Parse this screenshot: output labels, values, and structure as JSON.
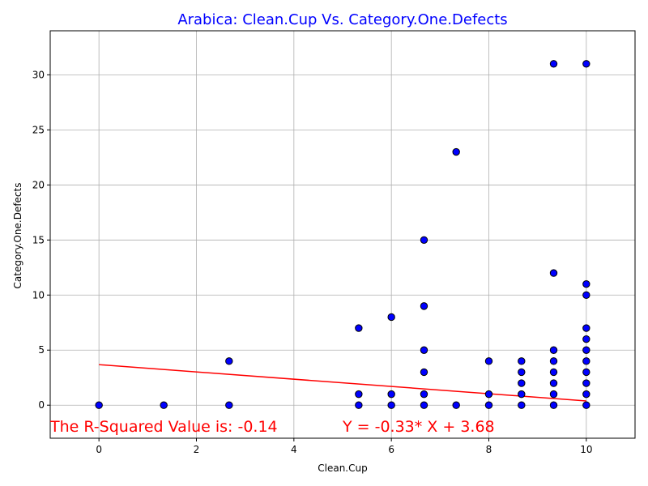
{
  "chart_data": {
    "type": "scatter",
    "title": "Arabica: Clean.Cup Vs. Category.One.Defects",
    "title_color": "#0000ff",
    "xlabel": "Clean.Cup",
    "ylabel": "Category.One.Defects",
    "xlim": [
      -1,
      11
    ],
    "ylim": [
      -3,
      34
    ],
    "x_ticks": [
      0,
      2,
      4,
      6,
      8,
      10
    ],
    "y_ticks": [
      0,
      5,
      10,
      15,
      20,
      25,
      30
    ],
    "x_tick_labels": [
      "0",
      "2",
      "4",
      "6",
      "8",
      "10"
    ],
    "y_tick_labels": [
      "0",
      "5",
      "10",
      "15",
      "20",
      "25",
      "30"
    ],
    "grid": true,
    "point_color": "#0000ff",
    "point_edge_color": "#000000",
    "points": [
      [
        0,
        0
      ],
      [
        1.33,
        0
      ],
      [
        2.67,
        0
      ],
      [
        2.67,
        4
      ],
      [
        5.33,
        0
      ],
      [
        5.33,
        1
      ],
      [
        5.33,
        7
      ],
      [
        6,
        0
      ],
      [
        6,
        1
      ],
      [
        6,
        8
      ],
      [
        6.67,
        0
      ],
      [
        6.67,
        1
      ],
      [
        6.67,
        3
      ],
      [
        6.67,
        5
      ],
      [
        6.67,
        9
      ],
      [
        6.67,
        15
      ],
      [
        7.33,
        0
      ],
      [
        7.33,
        23
      ],
      [
        8,
        0
      ],
      [
        8,
        1
      ],
      [
        8,
        4
      ],
      [
        8.67,
        0
      ],
      [
        8.67,
        1
      ],
      [
        8.67,
        2
      ],
      [
        8.67,
        3
      ],
      [
        8.67,
        4
      ],
      [
        9.33,
        0
      ],
      [
        9.33,
        1
      ],
      [
        9.33,
        2
      ],
      [
        9.33,
        3
      ],
      [
        9.33,
        4
      ],
      [
        9.33,
        5
      ],
      [
        9.33,
        12
      ],
      [
        9.33,
        31
      ],
      [
        10,
        0
      ],
      [
        10,
        1
      ],
      [
        10,
        2
      ],
      [
        10,
        3
      ],
      [
        10,
        4
      ],
      [
        10,
        5
      ],
      [
        10,
        6
      ],
      [
        10,
        7
      ],
      [
        10,
        10
      ],
      [
        10,
        11
      ],
      [
        10,
        31
      ]
    ],
    "regression": {
      "slope": -0.33,
      "intercept": 3.68,
      "x_range": [
        0,
        10
      ],
      "color": "#ff0000"
    },
    "annotations": {
      "r_squared": "The R-Squared Value is: -0.14",
      "equation": "Y = -0.33* X + 3.68",
      "color": "#ff0000"
    }
  }
}
